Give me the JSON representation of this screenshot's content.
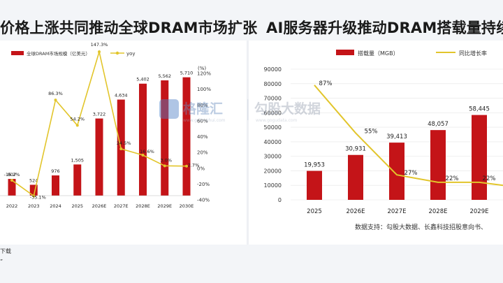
{
  "left_title": "价格上涨共同推动全球DRAM市场扩张",
  "right_title": "AI服务器升级推动DRAM搭载量持续",
  "bottom_line1": "下载",
  "bottom_line2": "”",
  "watermark": {
    "brand": "格隆汇",
    "sub": "www.gelonghui.com",
    "brand2": "勾股大数据",
    "sub2": "www.gogudata.com"
  },
  "source_text": "数据支持：勾股大数据、长鑫科技招股意向书、",
  "colors": {
    "bar": "#c41418",
    "line": "#e2c52b",
    "text": "#222222"
  },
  "chart_data": [
    {
      "type": "bar",
      "categories": [
        "2022",
        "2023",
        "2024",
        "2025",
        "2026E",
        "2027E",
        "2028E",
        "2029E",
        "2030E"
      ],
      "series": [
        {
          "name": "全球DRAM市场规模（亿美元）",
          "kind": "bar",
          "values": [
            807,
            524,
            976,
            1505,
            3722,
            4634,
            5402,
            5562,
            5710
          ],
          "labels": [
            "807",
            "524",
            "976",
            "1,505",
            "3,722",
            "4,634",
            "5,402",
            "5,562",
            "5,710"
          ]
        },
        {
          "name": "yoy",
          "kind": "line",
          "axis": "right",
          "values": [
            -15.2,
            -35.1,
            86.3,
            54.2,
            147.3,
            24.5,
            16.6,
            3.0,
            2.7
          ],
          "labels": [
            "-15.2%",
            "-35.1%",
            "86.3%",
            "54.2%",
            "147.3%",
            "24.5%",
            "16.6%",
            "3.0%",
            "2.7%"
          ]
        }
      ],
      "y_right_unit": "(%)",
      "y_right_ticks": [
        "120%",
        "100%",
        "80%",
        "60%",
        "40%",
        "20%",
        "0%",
        "-20%",
        "-40%"
      ],
      "y_right_range": [
        -40,
        120
      ]
    },
    {
      "type": "bar",
      "categories": [
        "2025",
        "2026E",
        "2027E",
        "2028E",
        "2029E"
      ],
      "series": [
        {
          "name": "搭载量（MGB）",
          "kind": "bar",
          "values": [
            19953,
            30931,
            39413,
            48057,
            58445
          ],
          "labels": [
            "19,953",
            "30,931",
            "39,413",
            "48,057",
            "58,445"
          ]
        },
        {
          "name": "同比增长率",
          "kind": "line",
          "values": [
            87,
            55,
            27,
            22,
            22
          ],
          "labels": [
            "87%",
            "55%",
            "27%",
            "22%",
            "22%"
          ]
        }
      ],
      "y_ticks": [
        "90000",
        "80000",
        "70000",
        "60000",
        "50000",
        "40000",
        "30000",
        "20000",
        "10000",
        "0"
      ],
      "ylim": [
        0,
        90000
      ]
    }
  ]
}
